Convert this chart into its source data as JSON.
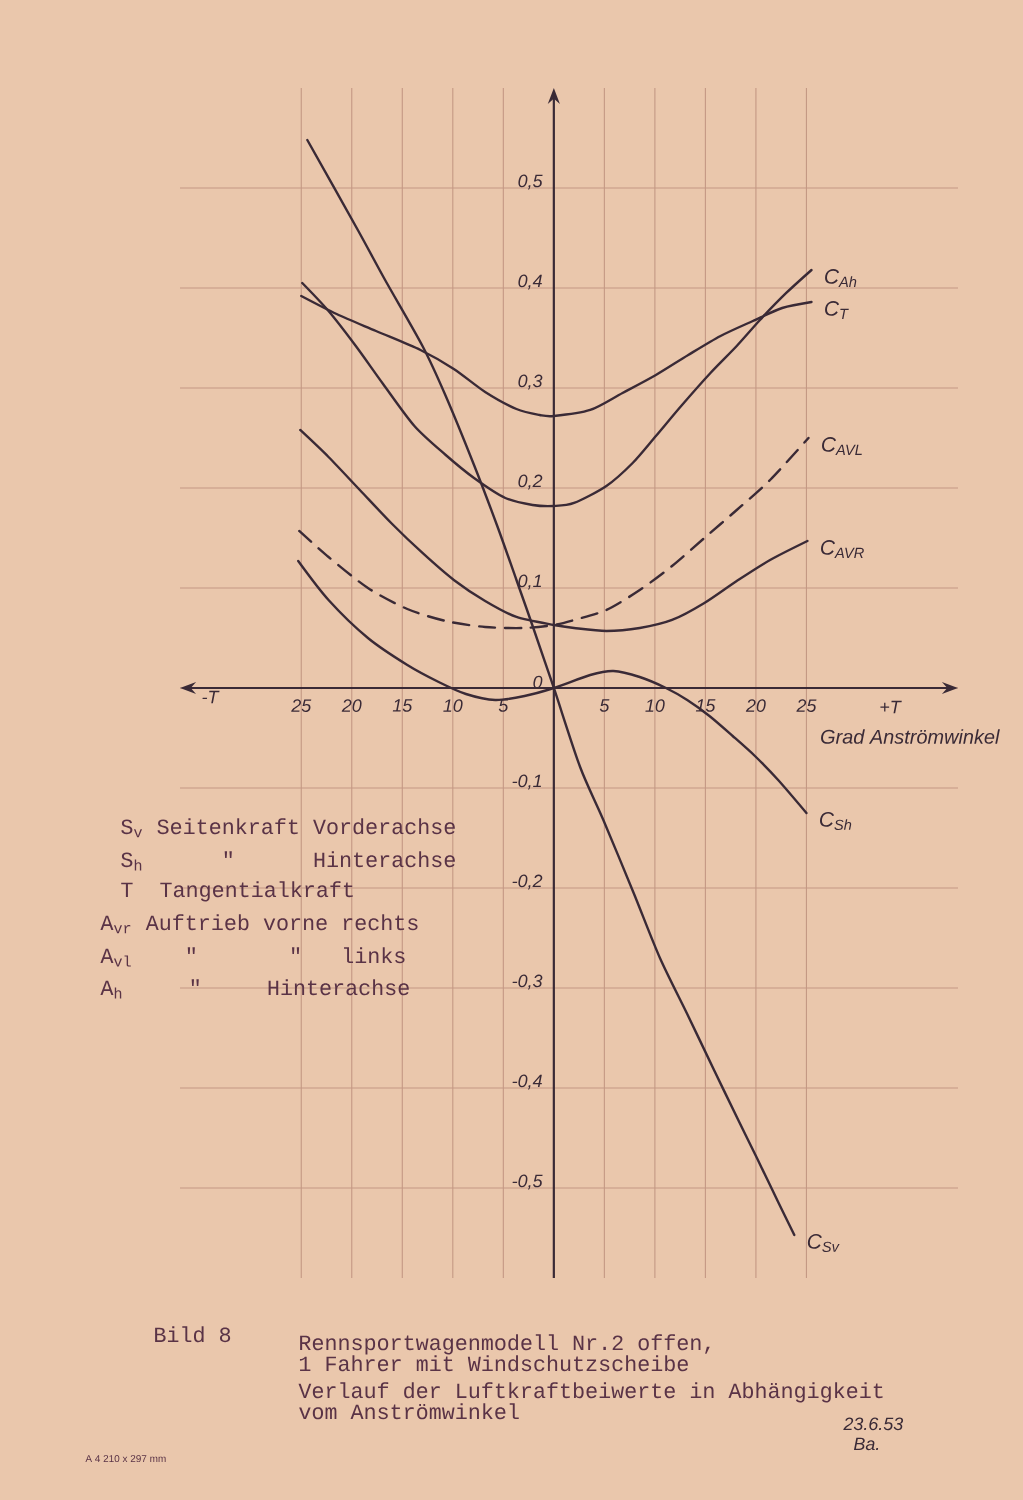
{
  "chart_data": {
    "type": "line",
    "xlabel": "Grad Anströmwinkel",
    "xlim": [
      -37,
      40
    ],
    "ylim": [
      -0.59,
      0.6
    ],
    "xticks": [
      {
        "value": -25,
        "label": "25"
      },
      {
        "value": -20,
        "label": "20"
      },
      {
        "value": -15,
        "label": "15"
      },
      {
        "value": -10,
        "label": "10"
      },
      {
        "value": -5,
        "label": "5"
      },
      5,
      10,
      15,
      20,
      25
    ],
    "yticks": [
      {
        "value": -0.5,
        "label": "-0,5"
      },
      {
        "value": -0.4,
        "label": "-0,4"
      },
      {
        "value": -0.3,
        "label": "-0,3"
      },
      {
        "value": -0.2,
        "label": "-0,2"
      },
      {
        "value": -0.1,
        "label": "-0,1"
      },
      0,
      {
        "value": 0.1,
        "label": "0,1"
      },
      {
        "value": 0.2,
        "label": "0,2"
      },
      {
        "value": 0.3,
        "label": "0,3"
      },
      {
        "value": 0.4,
        "label": "0,4"
      },
      {
        "value": 0.5,
        "label": "0,5"
      }
    ],
    "grid": true,
    "series": [
      {
        "name": "C$_{Ah}$",
        "color": "#3a2a36",
        "x": [
          -24.9,
          -22.3,
          -19.6,
          -16.9,
          -13.8,
          -10.7,
          -7.9,
          -4.8,
          -2.1,
          0,
          2.0,
          5.2,
          7.8,
          10.1,
          12.6,
          15.5,
          18.1,
          20.4,
          23.0,
          25.5
        ],
        "values": [
          0.405,
          0.377,
          0.342,
          0.304,
          0.262,
          0.233,
          0.21,
          0.19,
          0.183,
          0.182,
          0.185,
          0.202,
          0.225,
          0.252,
          0.282,
          0.315,
          0.342,
          0.368,
          0.395,
          0.418
        ]
      },
      {
        "name": "C$_{T}$",
        "color": "#3a2a36",
        "x": [
          -25.0,
          -21.5,
          -17.6,
          -13.2,
          -9.9,
          -6.8,
          -3.7,
          -1.4,
          0,
          3.6,
          6.8,
          10.1,
          13.3,
          16.5,
          19.7,
          22.6,
          25.5
        ],
        "values": [
          0.392,
          0.374,
          0.357,
          0.338,
          0.319,
          0.296,
          0.279,
          0.273,
          0.272,
          0.278,
          0.295,
          0.313,
          0.333,
          0.352,
          0.367,
          0.38,
          0.386
        ]
      },
      {
        "name": "C$_{AVL}$",
        "color": "#3a2a36",
        "line_style": "dashed",
        "x": [
          -25.2,
          -22.3,
          -18.4,
          -14.5,
          -10.7,
          -6.8,
          -2.9,
          0,
          2.0,
          5.2,
          8.5,
          11.7,
          14.9,
          18.1,
          21.4,
          25.2
        ],
        "values": [
          0.157,
          0.131,
          0.1,
          0.079,
          0.067,
          0.061,
          0.06,
          0.063,
          0.068,
          0.078,
          0.098,
          0.122,
          0.15,
          0.178,
          0.208,
          0.25
        ]
      },
      {
        "name": "C$_{AVR}$",
        "color": "#3a2a36",
        "x": [
          -25.1,
          -22.3,
          -19.2,
          -16.1,
          -13.0,
          -9.9,
          -6.8,
          -3.7,
          0,
          2.0,
          5.2,
          8.5,
          11.7,
          14.9,
          18.1,
          21.4,
          25.1
        ],
        "values": [
          0.258,
          0.231,
          0.198,
          0.165,
          0.135,
          0.108,
          0.087,
          0.071,
          0.063,
          0.06,
          0.057,
          0.06,
          0.068,
          0.085,
          0.107,
          0.128,
          0.147
        ]
      },
      {
        "name": "C$_{Sh}$",
        "color": "#3a2a36",
        "x": [
          -25.3,
          -22.3,
          -18.4,
          -14.5,
          -11.4,
          -8.7,
          -5.8,
          -2.9,
          0,
          3.6,
          5.9,
          8.5,
          11.1,
          13.2,
          15.4,
          17.7,
          19.9,
          22.2,
          25.0
        ],
        "values": [
          0.127,
          0.088,
          0.05,
          0.023,
          0.006,
          -0.006,
          -0.012,
          -0.008,
          0,
          0.013,
          0.017,
          0.011,
          0,
          -0.012,
          -0.028,
          -0.048,
          -0.068,
          -0.092,
          -0.125
        ]
      },
      {
        "name": "C$_{Sv}$",
        "color": "#3a2a36",
        "x": [
          -24.4,
          -19.4,
          -16.7,
          -13.0,
          -10.7,
          -7.9,
          -5.6,
          -3.7,
          -2.1,
          0,
          2.6,
          4.9,
          7.9,
          10.5,
          13.2,
          15.9,
          18.3,
          20.1,
          22.2,
          23.8
        ],
        "values": [
          0.548,
          0.458,
          0.408,
          0.342,
          0.292,
          0.223,
          0.162,
          0.108,
          0.062,
          0,
          -0.079,
          -0.132,
          -0.205,
          -0.27,
          -0.326,
          -0.383,
          -0.433,
          -0.47,
          -0.514,
          -0.547
        ]
      }
    ],
    "annotations": [
      "Bild 8",
      "Rennsportwagenmodell Nr.2 offen,",
      "1 Fahrer mit Windschutzscheibe",
      "Verlauf der Luftkraftbeiwerte in Abhängigkeit",
      "vom Anströmwinkel",
      "23.6.53",
      "Ba.",
      "A 4 210 x 297 mm",
      "-T",
      "+T",
      "S$_{v}$ Seitenkraft Vorderachse",
      "S$_{h}$      \"      Hinterachse",
      "T  Tangentialkraft",
      "A$_{vr}$ Auftrieb vorne rechts",
      "A$_{vl}$    \"       \"   links",
      "A$_{h}$     \"     Hinterachse"
    ]
  }
}
